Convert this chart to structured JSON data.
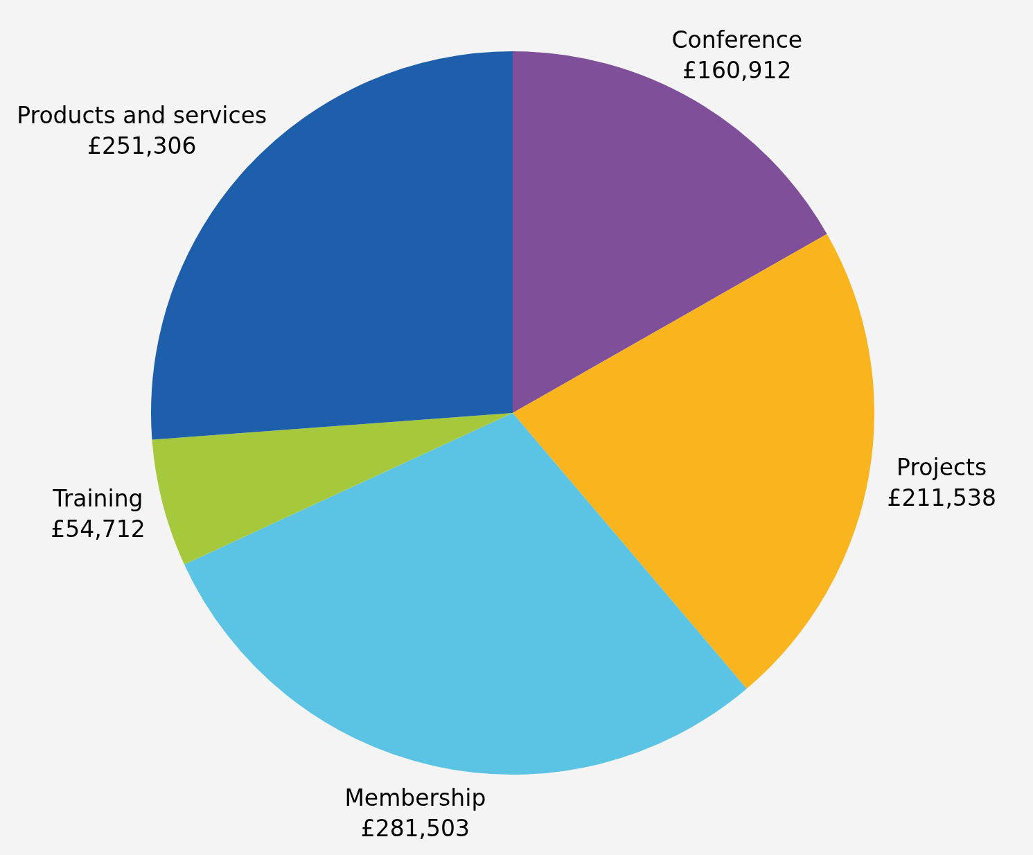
{
  "chart_data": {
    "type": "pie",
    "categories": [
      "Conference",
      "Projects",
      "Membership",
      "Training",
      "Products and services"
    ],
    "values": [
      160912,
      211538,
      281503,
      54712,
      251306
    ],
    "value_labels": [
      "£160,912",
      "£211,538",
      "£281,503",
      "£54,712",
      "£251,306"
    ],
    "colors": [
      "#7f4f9a",
      "#f9b41e",
      "#5bc3e4",
      "#a6c83c",
      "#1e5fab"
    ],
    "legend": false
  }
}
